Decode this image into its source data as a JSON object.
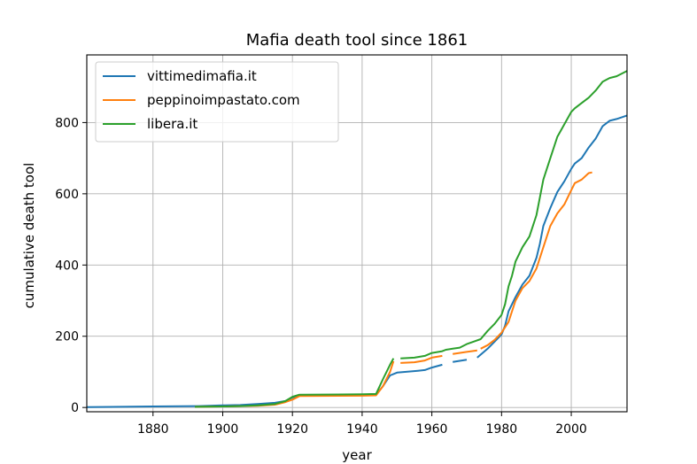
{
  "chart_data": {
    "type": "line",
    "title": "Mafia death tool since 1861",
    "xlabel": "year",
    "ylabel": "cumulative death tool",
    "xlim": [
      1861,
      2016
    ],
    "ylim": [
      -12,
      990
    ],
    "xticks": [
      1880,
      1900,
      1920,
      1940,
      1960,
      1980,
      2000
    ],
    "yticks": [
      0,
      200,
      400,
      600,
      800
    ],
    "grid": true,
    "legend": "top-left",
    "series": [
      {
        "name": "vittimedimafia.it",
        "color": "#1f77b4",
        "segments": [
          [
            [
              1861,
              1
            ],
            [
              1880,
              3
            ],
            [
              1893,
              4
            ],
            [
              1900,
              6
            ],
            [
              1905,
              7
            ],
            [
              1910,
              10
            ],
            [
              1915,
              13
            ],
            [
              1918,
              18
            ],
            [
              1920,
              28
            ],
            [
              1922,
              33
            ],
            [
              1940,
              35
            ],
            [
              1944,
              36
            ],
            [
              1946,
              60
            ],
            [
              1948,
              90
            ],
            [
              1950,
              98
            ],
            [
              1956,
              103
            ],
            [
              1958,
              105
            ],
            [
              1960,
              112
            ],
            [
              1963,
              120
            ]
          ],
          [
            [
              1966,
              128
            ],
            [
              1970,
              134
            ]
          ],
          [
            [
              1973,
              140
            ],
            [
              1976,
              165
            ],
            [
              1978,
              185
            ],
            [
              1980,
              205
            ],
            [
              1981,
              230
            ],
            [
              1982,
              270
            ],
            [
              1984,
              310
            ],
            [
              1986,
              345
            ],
            [
              1988,
              370
            ],
            [
              1990,
              420
            ],
            [
              1991,
              460
            ],
            [
              1992,
              510
            ],
            [
              1994,
              560
            ],
            [
              1996,
              605
            ],
            [
              1998,
              635
            ],
            [
              2000,
              670
            ],
            [
              2001,
              685
            ],
            [
              2003,
              700
            ],
            [
              2005,
              730
            ],
            [
              2007,
              755
            ],
            [
              2009,
              790
            ],
            [
              2011,
              805
            ],
            [
              2013,
              810
            ],
            [
              2016,
              820
            ]
          ]
        ]
      },
      {
        "name": "peppinoimpastato.com",
        "color": "#ff7f0e",
        "segments": [
          [
            [
              1892,
              2
            ],
            [
              1900,
              3
            ],
            [
              1910,
              5
            ],
            [
              1915,
              8
            ],
            [
              1918,
              15
            ],
            [
              1920,
              22
            ],
            [
              1922,
              32
            ],
            [
              1940,
              33
            ],
            [
              1944,
              34
            ],
            [
              1946,
              60
            ],
            [
              1948,
              100
            ],
            [
              1949,
              130
            ]
          ],
          [
            [
              1951,
              125
            ],
            [
              1955,
              127
            ],
            [
              1958,
              132
            ],
            [
              1960,
              140
            ],
            [
              1963,
              145
            ]
          ],
          [
            [
              1966,
              150
            ],
            [
              1970,
              156
            ],
            [
              1973,
              160
            ]
          ],
          [
            [
              1974,
              165
            ],
            [
              1976,
              175
            ],
            [
              1978,
              190
            ],
            [
              1980,
              210
            ],
            [
              1982,
              240
            ],
            [
              1984,
              300
            ],
            [
              1986,
              335
            ],
            [
              1988,
              355
            ],
            [
              1990,
              390
            ],
            [
              1992,
              450
            ],
            [
              1994,
              510
            ],
            [
              1996,
              545
            ],
            [
              1998,
              570
            ],
            [
              2000,
              610
            ],
            [
              2001,
              630
            ],
            [
              2003,
              640
            ],
            [
              2005,
              658
            ],
            [
              2006,
              660
            ]
          ]
        ]
      },
      {
        "name": "libera.it",
        "color": "#2ca02c",
        "segments": [
          [
            [
              1892,
              2
            ],
            [
              1900,
              3
            ],
            [
              1905,
              4
            ],
            [
              1910,
              6
            ],
            [
              1915,
              10
            ],
            [
              1918,
              18
            ],
            [
              1920,
              30
            ],
            [
              1922,
              36
            ],
            [
              1940,
              37
            ],
            [
              1944,
              38
            ],
            [
              1946,
              80
            ],
            [
              1948,
              120
            ],
            [
              1949,
              138
            ]
          ],
          [
            [
              1951,
              138
            ],
            [
              1955,
              140
            ],
            [
              1958,
              145
            ],
            [
              1960,
              153
            ],
            [
              1963,
              158
            ],
            [
              1964,
              162
            ],
            [
              1966,
              165
            ],
            [
              1968,
              168
            ],
            [
              1970,
              178
            ],
            [
              1972,
              185
            ],
            [
              1974,
              192
            ],
            [
              1976,
              215
            ],
            [
              1978,
              235
            ],
            [
              1980,
              260
            ],
            [
              1981,
              290
            ],
            [
              1982,
              340
            ],
            [
              1983,
              370
            ],
            [
              1984,
              410
            ],
            [
              1986,
              450
            ],
            [
              1988,
              480
            ],
            [
              1990,
              540
            ],
            [
              1991,
              590
            ],
            [
              1992,
              640
            ],
            [
              1994,
              700
            ],
            [
              1996,
              760
            ],
            [
              1998,
              795
            ],
            [
              2000,
              830
            ],
            [
              2001,
              840
            ],
            [
              2003,
              855
            ],
            [
              2005,
              870
            ],
            [
              2007,
              890
            ],
            [
              2009,
              915
            ],
            [
              2011,
              925
            ],
            [
              2013,
              930
            ],
            [
              2016,
              945
            ]
          ]
        ]
      }
    ]
  }
}
